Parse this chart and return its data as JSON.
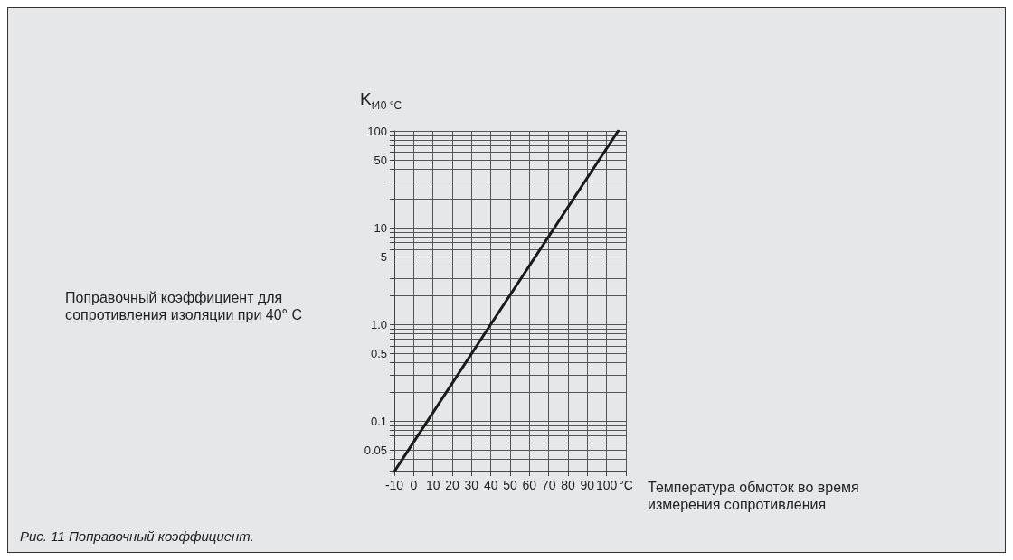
{
  "chart_data": {
    "type": "line",
    "ylabel": "K$_{t40 °C}$",
    "xlabel": "Температура обмоток во время измерения сопротивления",
    "annotations": [
      "Поправочный коэффициент для сопротивления изоляции при 40° C",
      "Рис. 11 Поправочный коэффициент."
    ],
    "series": [
      {
        "color": "#1a1a1a",
        "x": [
          -10,
          40,
          106
        ],
        "values": [
          0.03,
          1,
          100
        ]
      }
    ],
    "log": "y",
    "xlim": [
      -10,
      110
    ],
    "xticks": [
      -10,
      0,
      10,
      20,
      30,
      40,
      50,
      60,
      70,
      80,
      90,
      100,
      {
        "value": 110,
        "label": "°C"
      }
    ],
    "ylim": [
      0.03,
      100
    ],
    "yticks": [
      {
        "value": 0.03,
        "label": null
      },
      {
        "value": 0.04,
        "label": null
      },
      0.05,
      {
        "value": 0.06,
        "label": null
      },
      {
        "value": 0.07,
        "label": null
      },
      {
        "value": 0.08,
        "label": null
      },
      {
        "value": 0.09,
        "label": null
      },
      0.1,
      {
        "value": 0.2,
        "label": null
      },
      {
        "value": 0.3,
        "label": null
      },
      {
        "value": 0.4,
        "label": null
      },
      0.5,
      {
        "value": 0.6,
        "label": null
      },
      {
        "value": 0.7,
        "label": null
      },
      {
        "value": 0.8,
        "label": null
      },
      {
        "value": 0.9,
        "label": null
      },
      {
        "value": 1,
        "label": "1.0"
      },
      {
        "value": 2,
        "label": null
      },
      {
        "value": 3,
        "label": null
      },
      {
        "value": 4,
        "label": null
      },
      5,
      {
        "value": 6,
        "label": null
      },
      {
        "value": 7,
        "label": null
      },
      {
        "value": 8,
        "label": null
      },
      {
        "value": 9,
        "label": null
      },
      10,
      {
        "value": 20,
        "label": null
      },
      {
        "value": 30,
        "label": null
      },
      {
        "value": 40,
        "label": null
      },
      50,
      {
        "value": 60,
        "label": null
      },
      {
        "value": 70,
        "label": null
      },
      {
        "value": 80,
        "label": null
      },
      {
        "value": 90,
        "label": null
      },
      100
    ],
    "grid": true,
    "marker": "none",
    "line_style": "solid"
  }
}
